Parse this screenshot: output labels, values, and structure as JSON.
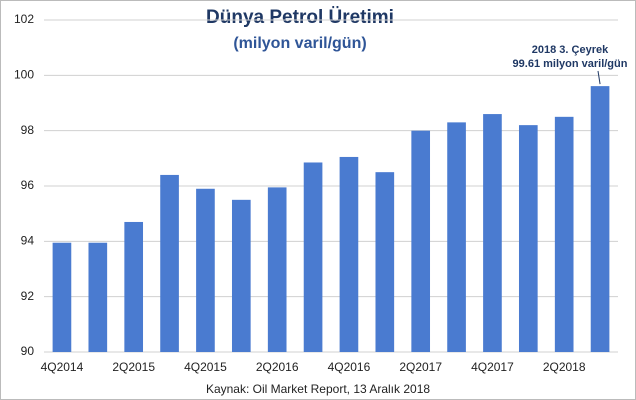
{
  "chart_data": {
    "type": "bar",
    "title": "Dünya Petrol Üretimi",
    "subtitle": "(milyon varil/gün)",
    "annotation": [
      "2018 3. Çeyrek",
      "99.61 milyon varil/gün"
    ],
    "source": "Kaynak: Oil Market Report, 13 Aralık 2018",
    "categories": [
      "4Q2014",
      null,
      "2Q2015",
      null,
      "4Q2015",
      null,
      "2Q2016",
      null,
      "4Q2016",
      null,
      "2Q2017",
      null,
      "4Q2017",
      null,
      "2Q2018",
      null
    ],
    "values": [
      93.95,
      93.95,
      94.7,
      96.4,
      95.9,
      95.5,
      95.95,
      96.85,
      97.05,
      96.5,
      98.0,
      98.3,
      98.6,
      98.2,
      98.5,
      99.61
    ],
    "color": "#4a7bd0",
    "ylim": [
      90,
      102
    ],
    "yticks": [
      90,
      92,
      94,
      96,
      98,
      100,
      102
    ],
    "grid": true
  }
}
